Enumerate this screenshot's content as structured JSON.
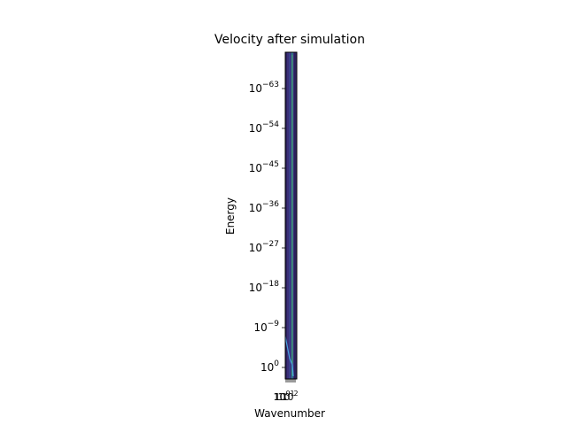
{
  "chart_data": {
    "type": "heatmap",
    "title": "Velocity after simulation",
    "xlabel": "Wavenumber",
    "ylabel": "Energy",
    "yscale": "log",
    "ylim_exponent": [
      -1,
      -70
    ],
    "y_ticks": [
      {
        "base": "10",
        "exp": "−63",
        "value_exp": -63
      },
      {
        "base": "10",
        "exp": "−54",
        "value_exp": -54
      },
      {
        "base": "10",
        "exp": "−45",
        "value_exp": -45
      },
      {
        "base": "10",
        "exp": "−36",
        "value_exp": -36
      },
      {
        "base": "10",
        "exp": "−27",
        "value_exp": -27
      },
      {
        "base": "10",
        "exp": "−18",
        "value_exp": -18
      },
      {
        "base": "10",
        "exp": "−9",
        "value_exp": -9
      },
      {
        "base": "10",
        "exp": "0",
        "value_exp": 0
      }
    ],
    "x_ticks": [
      {
        "base": "10",
        "exp": "0",
        "value": 1
      },
      {
        "base": "10",
        "exp": "1",
        "value": 10
      },
      {
        "base": "10",
        "exp": "2",
        "value": 100
      }
    ],
    "x_tick_fragment": "1",
    "colors": {
      "background": "#3b2f78",
      "band_dark": "#2a1f5c",
      "band_teal": "#2a8c8c",
      "line_blue": "#4aa0e0",
      "line_green": "#4fc070"
    },
    "grid": false,
    "legend": "none"
  }
}
